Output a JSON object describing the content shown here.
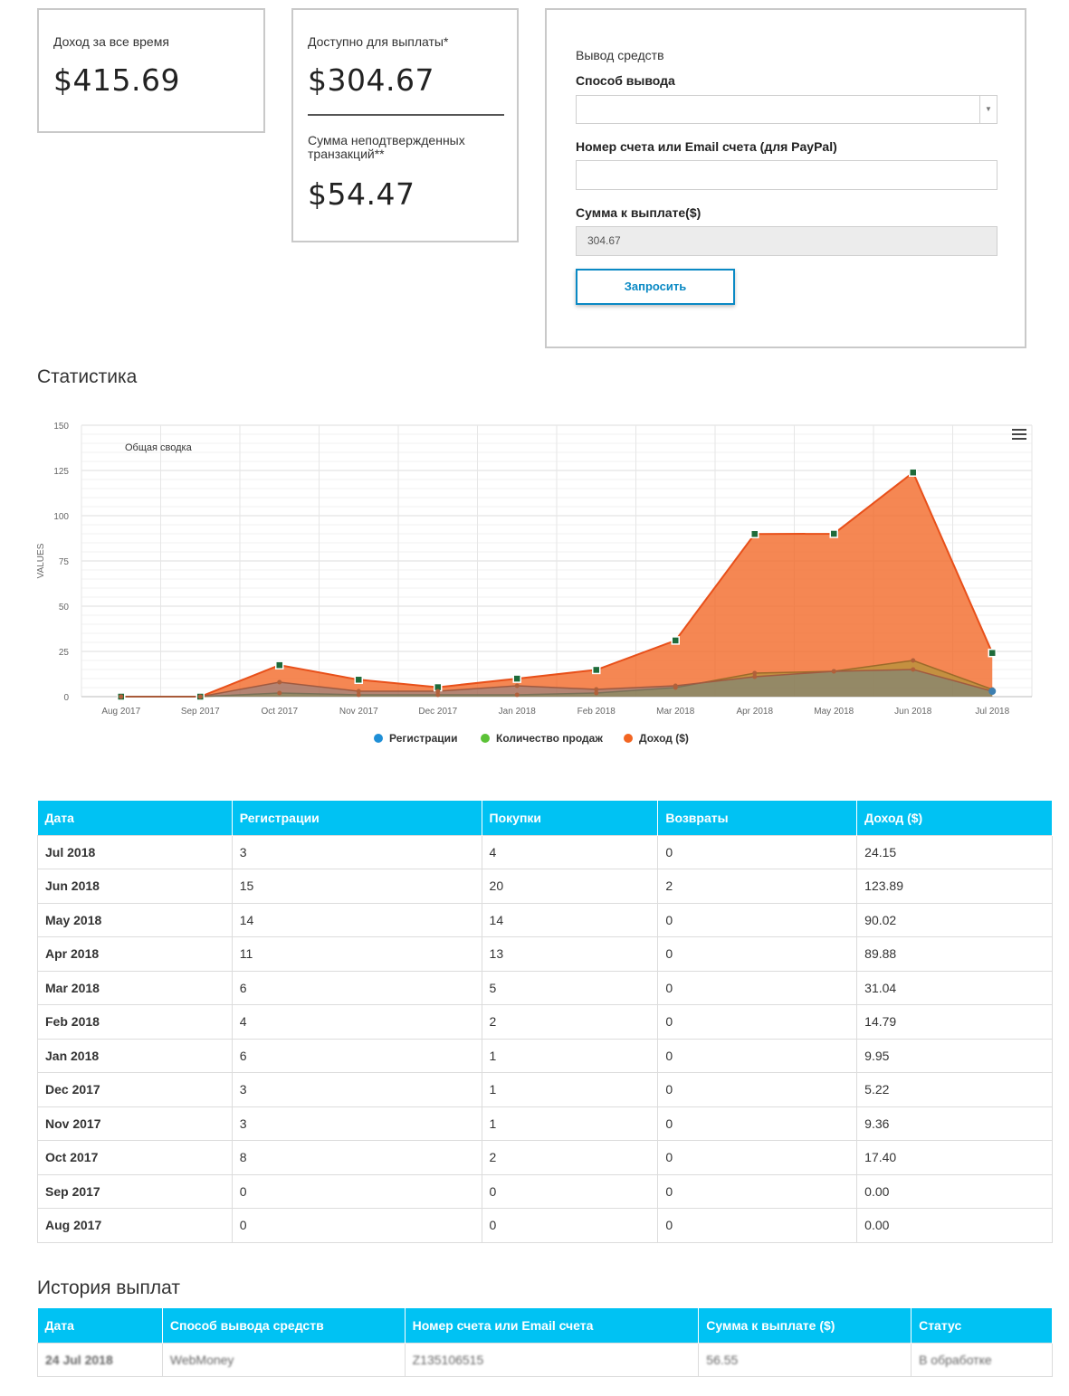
{
  "cards": {
    "total_income_label": "Доход за все время",
    "total_income_value": "$415.69",
    "available_label": "Доступно для выплаты*",
    "available_value": "$304.67",
    "unconfirmed_label": "Сумма неподтвержденных транзакций**",
    "unconfirmed_value": "$54.47"
  },
  "withdraw": {
    "title": "Вывод средств",
    "method_label": "Способ вывода",
    "method_value": "",
    "account_label": "Номер счета или Email счета (для PayPal)",
    "account_value": "",
    "amount_label": "Сумма к выплате($)",
    "amount_value": "304.67",
    "submit_label": "Запросить"
  },
  "stats": {
    "title": "Статистика"
  },
  "chart_data": {
    "type": "area",
    "title": "Общая сводка",
    "ylabel": "VALUES",
    "xlabel": "",
    "ylim": [
      0,
      150
    ],
    "yticks": [
      "0",
      "25",
      "50",
      "75",
      "100",
      "125",
      "150"
    ],
    "categories": [
      "Aug 2017",
      "Sep 2017",
      "Oct 2017",
      "Nov 2017",
      "Dec 2017",
      "Jan 2018",
      "Feb 2018",
      "Mar 2018",
      "Apr 2018",
      "May 2018",
      "Jun 2018",
      "Jul 2018"
    ],
    "series": [
      {
        "name": "Регистрации",
        "color": "#1f8fd6",
        "values": [
          0,
          0,
          8,
          3,
          3,
          6,
          4,
          6,
          11,
          14,
          15,
          3
        ]
      },
      {
        "name": "Количество продаж",
        "color": "#5bc236",
        "values": [
          0,
          0,
          2,
          1,
          1,
          1,
          2,
          5,
          13,
          14,
          20,
          4
        ]
      },
      {
        "name": "Доход ($)",
        "color": "#f26522",
        "values": [
          0,
          0,
          17.4,
          9.36,
          5.22,
          9.95,
          14.79,
          31.04,
          89.88,
          90.02,
          123.89,
          24.15
        ]
      }
    ],
    "legend_position": "bottom",
    "grid": true
  },
  "stats_table": {
    "headers": [
      "Дата",
      "Регистрации",
      "Покупки",
      "Возвраты",
      "Доход ($)"
    ],
    "rows": [
      [
        "Jul 2018",
        "3",
        "4",
        "0",
        "24.15"
      ],
      [
        "Jun 2018",
        "15",
        "20",
        "2",
        "123.89"
      ],
      [
        "May 2018",
        "14",
        "14",
        "0",
        "90.02"
      ],
      [
        "Apr 2018",
        "11",
        "13",
        "0",
        "89.88"
      ],
      [
        "Mar 2018",
        "6",
        "5",
        "0",
        "31.04"
      ],
      [
        "Feb 2018",
        "4",
        "2",
        "0",
        "14.79"
      ],
      [
        "Jan 2018",
        "6",
        "1",
        "0",
        "9.95"
      ],
      [
        "Dec 2017",
        "3",
        "1",
        "0",
        "5.22"
      ],
      [
        "Nov 2017",
        "3",
        "1",
        "0",
        "9.36"
      ],
      [
        "Oct 2017",
        "8",
        "2",
        "0",
        "17.40"
      ],
      [
        "Sep 2017",
        "0",
        "0",
        "0",
        "0.00"
      ],
      [
        "Aug 2017",
        "0",
        "0",
        "0",
        "0.00"
      ]
    ]
  },
  "payout_history": {
    "title": "История выплат",
    "headers": [
      "Дата",
      "Способ вывода средств",
      "Номер счета или Email счета",
      "Сумма к выплате ($)",
      "Статус"
    ],
    "rows": [
      [
        "24 Jul 2018",
        "WebMoney",
        "Z135106515",
        "56.55",
        "В обработке"
      ]
    ]
  }
}
